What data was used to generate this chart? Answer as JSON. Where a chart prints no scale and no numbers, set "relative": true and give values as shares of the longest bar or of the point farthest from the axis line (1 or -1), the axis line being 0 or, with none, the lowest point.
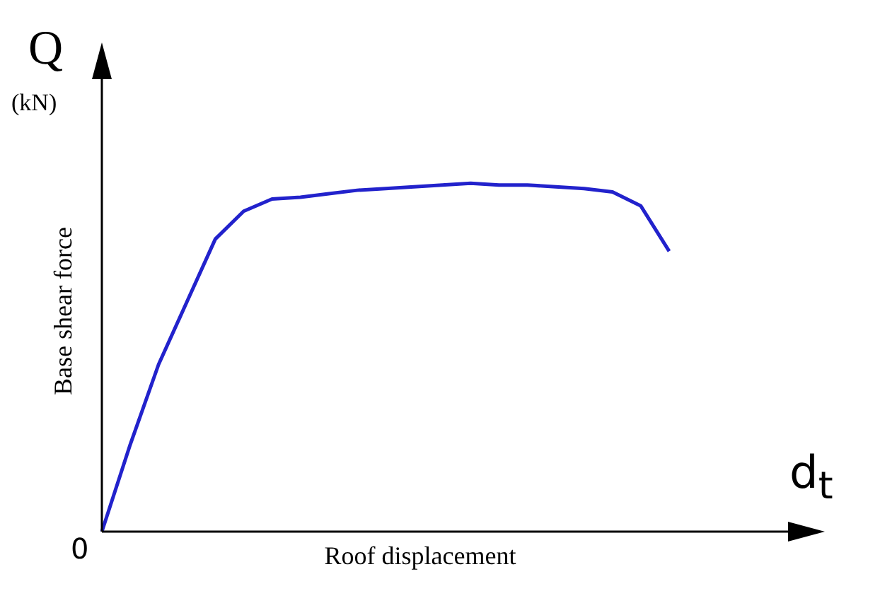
{
  "chart_data": {
    "type": "line",
    "relative": true,
    "marker": "none",
    "xlabel": "Roof displacement",
    "ylabel": "Base shear force",
    "annotations": [
      "Q",
      "(kN)",
      "d$_{t}$",
      "0"
    ],
    "categories": [
      null,
      null,
      null,
      null,
      null,
      null,
      null,
      null,
      null,
      null,
      null,
      null,
      null,
      null,
      null,
      null,
      null,
      null,
      null,
      null,
      null
    ],
    "series": [
      {
        "color": "#2222cc",
        "values": [
          0,
          0.25,
          0.48,
          0.66,
          0.84,
          0.92,
          0.955,
          0.96,
          0.97,
          0.98,
          0.985,
          0.99,
          0.995,
          1,
          0.995,
          0.995,
          0.99,
          0.985,
          0.975,
          0.935,
          0.805
        ]
      }
    ]
  }
}
